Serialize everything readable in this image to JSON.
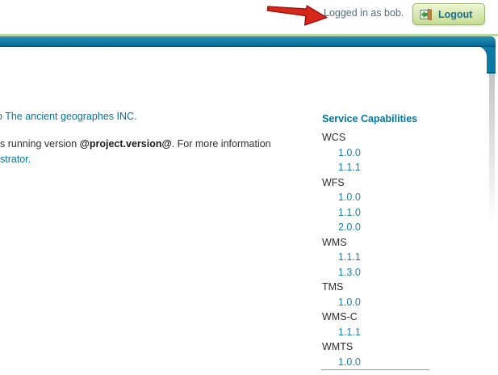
{
  "header": {
    "logged_in_text": "Logged in as bob.",
    "logout_label": "Logout"
  },
  "icons": {
    "annotation_arrow": "red-arrow-annotation-pointing-right",
    "logout_icon": "open-door-with-green-arrow"
  },
  "main": {
    "welcome_line_prefix": "o",
    "welcome_line_link": "The ancient geographes INC.",
    "version_line_before": "s running version ",
    "version_line_bold": "@project.version@",
    "version_line_after": ". For more information",
    "admin_link_fragment": "strator."
  },
  "sidebar": {
    "title": "Service Capabilities",
    "services": [
      {
        "name": "WCS",
        "versions": [
          "1.0.0",
          "1.1.1"
        ]
      },
      {
        "name": "WFS",
        "versions": [
          "1.0.0",
          "1.1.0",
          "2.0.0"
        ]
      },
      {
        "name": "WMS",
        "versions": [
          "1.1.1",
          "1.3.0"
        ]
      },
      {
        "name": "TMS",
        "versions": [
          "1.0.0"
        ]
      },
      {
        "name": "WMS-C",
        "versions": [
          "1.1.1"
        ]
      },
      {
        "name": "WMTS",
        "versions": [
          "1.0.0"
        ]
      }
    ]
  },
  "colors": {
    "accent_teal": "#0076a1",
    "link_blue": "#0076a1",
    "version_link_blue": "#1c80ad",
    "body_text": "#2e2e2e",
    "logged_in_text": "#4e6c79",
    "logout_text": "#1d6d96",
    "arrow_red": "#d7281c",
    "arrow_red_dark": "#9c120a",
    "topbar_green_line": "#bcd8a3",
    "topbar_teal_top": "#2990b4",
    "topbar_teal_bottom": "#046896",
    "button_green_top": "#edf6d4",
    "button_green_bottom": "#c5dd92",
    "button_border": "#9fb573"
  }
}
